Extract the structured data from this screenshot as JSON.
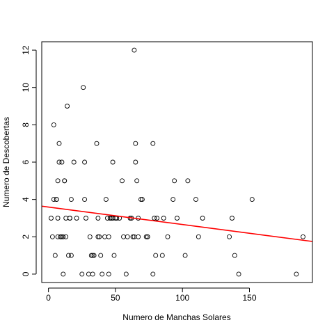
{
  "chart_data": {
    "type": "scatter",
    "xlabel": "Numero de Manchas Solares",
    "ylabel": "Numero de Descobertas",
    "xlim": [
      -5,
      197
    ],
    "ylim": [
      -0.45,
      12.45
    ],
    "x_ticks": [
      0,
      50,
      100,
      150
    ],
    "y_ticks": [
      0,
      2,
      4,
      6,
      8,
      10,
      12
    ],
    "x_tick_labels": [
      "0",
      "50",
      "100",
      "150"
    ],
    "y_tick_labels": [
      "0",
      "2",
      "4",
      "6",
      "8",
      "10",
      "12"
    ],
    "grid": false,
    "legend": "none",
    "point_color": "#000000",
    "fit_line": {
      "color": "#ff0000",
      "x": [
        -5,
        197
      ],
      "y": [
        3.64,
        1.75
      ]
    },
    "points": [
      [
        2,
        3
      ],
      [
        4,
        8
      ],
      [
        4,
        4
      ],
      [
        3,
        2
      ],
      [
        5,
        1
      ],
      [
        6,
        4
      ],
      [
        6,
        4
      ],
      [
        7,
        5
      ],
      [
        7,
        3
      ],
      [
        7,
        2
      ],
      [
        8,
        7
      ],
      [
        8,
        6
      ],
      [
        9,
        2
      ],
      [
        9,
        2
      ],
      [
        10,
        2
      ],
      [
        10,
        6
      ],
      [
        11,
        2
      ],
      [
        11,
        0
      ],
      [
        12,
        5
      ],
      [
        12,
        5
      ],
      [
        13,
        3
      ],
      [
        13,
        2
      ],
      [
        14,
        9
      ],
      [
        15,
        1
      ],
      [
        16,
        3
      ],
      [
        16,
        3
      ],
      [
        17,
        1
      ],
      [
        17,
        4
      ],
      [
        19,
        6
      ],
      [
        21,
        3
      ],
      [
        25,
        0
      ],
      [
        26,
        10
      ],
      [
        27,
        6
      ],
      [
        27,
        4
      ],
      [
        28,
        3
      ],
      [
        30,
        0
      ],
      [
        31,
        2
      ],
      [
        32,
        1
      ],
      [
        33,
        0
      ],
      [
        33,
        1
      ],
      [
        34,
        1
      ],
      [
        36,
        7
      ],
      [
        37,
        2
      ],
      [
        37,
        3
      ],
      [
        38,
        2
      ],
      [
        39,
        1
      ],
      [
        40,
        0
      ],
      [
        42,
        2
      ],
      [
        43,
        4
      ],
      [
        44,
        3
      ],
      [
        45,
        2
      ],
      [
        45,
        0
      ],
      [
        46,
        3
      ],
      [
        47,
        3
      ],
      [
        48,
        6
      ],
      [
        48,
        3
      ],
      [
        49,
        1
      ],
      [
        50,
        3
      ],
      [
        51,
        3
      ],
      [
        53,
        3
      ],
      [
        55,
        5
      ],
      [
        56,
        2
      ],
      [
        58,
        0
      ],
      [
        59,
        2
      ],
      [
        61,
        3
      ],
      [
        62,
        3
      ],
      [
        63,
        2
      ],
      [
        64,
        12
      ],
      [
        64,
        2
      ],
      [
        65,
        7
      ],
      [
        65,
        6
      ],
      [
        66,
        5
      ],
      [
        67,
        2
      ],
      [
        67,
        3
      ],
      [
        69,
        4
      ],
      [
        70,
        4
      ],
      [
        73,
        2
      ],
      [
        74,
        2
      ],
      [
        74,
        2
      ],
      [
        78,
        7
      ],
      [
        78,
        0
      ],
      [
        79,
        3
      ],
      [
        80,
        1
      ],
      [
        81,
        3
      ],
      [
        85,
        1
      ],
      [
        86,
        3
      ],
      [
        89,
        2
      ],
      [
        93,
        4
      ],
      [
        94,
        5
      ],
      [
        96,
        3
      ],
      [
        102,
        1
      ],
      [
        104,
        5
      ],
      [
        110,
        4
      ],
      [
        112,
        2
      ],
      [
        115,
        3
      ],
      [
        135,
        2
      ],
      [
        137,
        3
      ],
      [
        139,
        1
      ],
      [
        142,
        0
      ],
      [
        152,
        4
      ],
      [
        185,
        0
      ],
      [
        190,
        2
      ]
    ]
  }
}
